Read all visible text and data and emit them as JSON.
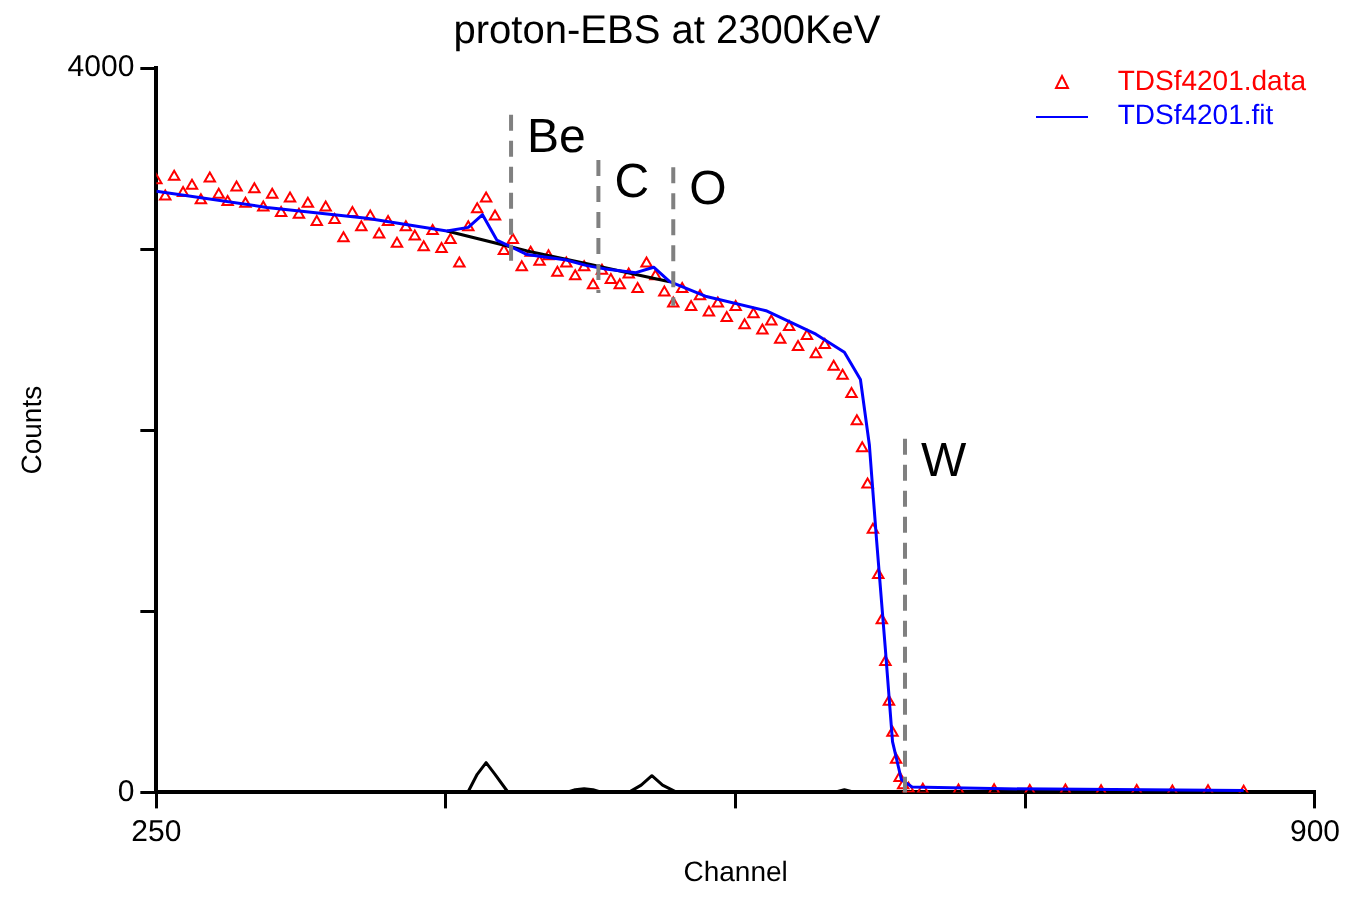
{
  "chart_data": {
    "type": "scatter",
    "title": "proton-EBS at 2300KeV",
    "xlabel": "Channel",
    "ylabel": "Counts",
    "xlim": [
      250,
      900
    ],
    "xticks": [
      250,
      {
        "value": 412.5,
        "label": null
      },
      {
        "value": 575,
        "label": null
      },
      {
        "value": 737.5,
        "label": null
      },
      900
    ],
    "ylim": [
      0,
      4000
    ],
    "yticks": [
      0,
      {
        "value": 1000,
        "label": null
      },
      {
        "value": 2000,
        "label": null
      },
      {
        "value": 3000,
        "label": null
      },
      4000
    ],
    "grid": false,
    "legend": "top right",
    "series": [
      {
        "type": "scatter",
        "name": "TDSf4201.data",
        "color": "#ff0000",
        "marker": "triangle",
        "x": [
          250,
          255,
          260,
          265,
          270,
          275,
          280,
          285,
          290,
          295,
          300,
          305,
          310,
          315,
          320,
          325,
          330,
          335,
          340,
          345,
          350,
          355,
          360,
          365,
          370,
          375,
          380,
          385,
          390,
          395,
          400,
          405,
          410,
          415,
          420,
          425,
          430,
          435,
          440,
          445,
          450,
          455,
          460,
          465,
          470,
          475,
          480,
          485,
          490,
          495,
          500,
          505,
          510,
          515,
          520,
          525,
          530,
          535,
          540,
          545,
          550,
          555,
          560,
          565,
          570,
          575,
          580,
          585,
          590,
          595,
          600,
          605,
          610,
          615,
          620,
          625,
          630,
          635,
          640,
          643,
          646,
          649,
          652,
          655,
          657,
          659,
          661,
          663,
          665,
          667,
          669,
          672,
          680,
          700,
          720,
          740,
          760,
          780,
          800,
          820,
          840,
          860
        ],
        "values": [
          3380,
          3290,
          3400,
          3310,
          3350,
          3270,
          3390,
          3300,
          3260,
          3340,
          3250,
          3330,
          3230,
          3300,
          3200,
          3280,
          3190,
          3250,
          3150,
          3230,
          3160,
          3060,
          3200,
          3120,
          3180,
          3080,
          3150,
          3030,
          3120,
          3070,
          3010,
          3100,
          3000,
          3050,
          2920,
          3120,
          3220,
          3280,
          3180,
          2990,
          3050,
          2900,
          2980,
          2930,
          2960,
          2870,
          2920,
          2850,
          2900,
          2800,
          2880,
          2830,
          2800,
          2860,
          2780,
          2920,
          2850,
          2760,
          2700,
          2780,
          2680,
          2740,
          2650,
          2700,
          2620,
          2680,
          2580,
          2640,
          2550,
          2600,
          2500,
          2570,
          2460,
          2520,
          2420,
          2470,
          2350,
          2300,
          2200,
          2050,
          1900,
          1700,
          1450,
          1200,
          950,
          720,
          500,
          330,
          180,
          80,
          40,
          20,
          15,
          10,
          12,
          8,
          10,
          6,
          8,
          5,
          7,
          4
        ]
      },
      {
        "type": "line",
        "color": "#000000",
        "x": [
          413,
          458,
          491,
          519,
          538
        ],
        "values": [
          3100,
          2990,
          2920,
          2860,
          2820
        ]
      },
      {
        "type": "line",
        "color": "#000000",
        "x": [
          420,
          425,
          430,
          435,
          440,
          447,
          480,
          485,
          490,
          495,
          500,
          515,
          522,
          528,
          534,
          542,
          630,
          636,
          642
        ],
        "values": [
          0,
          5,
          100,
          164,
          100,
          5,
          0,
          15,
          20,
          15,
          0,
          0,
          40,
          92,
          40,
          0,
          0,
          15,
          0
        ]
      },
      {
        "type": "line",
        "name": "TDSf4201.fit",
        "color": "#0000ff",
        "line_style": "solid",
        "x": [
          250,
          312,
          368,
          413,
          425,
          433,
          441,
          458,
          480,
          491,
          502,
          519,
          529,
          538,
          558,
          592,
          620,
          636,
          645,
          650,
          654,
          659,
          663,
          668,
          674,
          726,
          860
        ],
        "values": [
          3320,
          3230,
          3170,
          3100,
          3120,
          3190,
          3050,
          2970,
          2940,
          2910,
          2890,
          2870,
          2900,
          2820,
          2740,
          2660,
          2530,
          2430,
          2280,
          1920,
          1400,
          790,
          280,
          70,
          30,
          20,
          10
        ]
      }
    ],
    "ref_lines": [
      {
        "axis": "x",
        "value": 449,
        "label": "Be",
        "color": "#808080",
        "line_style": "dashed"
      },
      {
        "axis": "x",
        "value": 498,
        "label": "C",
        "color": "#808080",
        "line_style": "dashed"
      },
      {
        "axis": "x",
        "value": 540,
        "label": "O",
        "color": "#808080",
        "line_style": "dashed"
      },
      {
        "axis": "x",
        "value": 670,
        "label": "W",
        "color": "#808080",
        "line_style": "dashed"
      }
    ]
  }
}
